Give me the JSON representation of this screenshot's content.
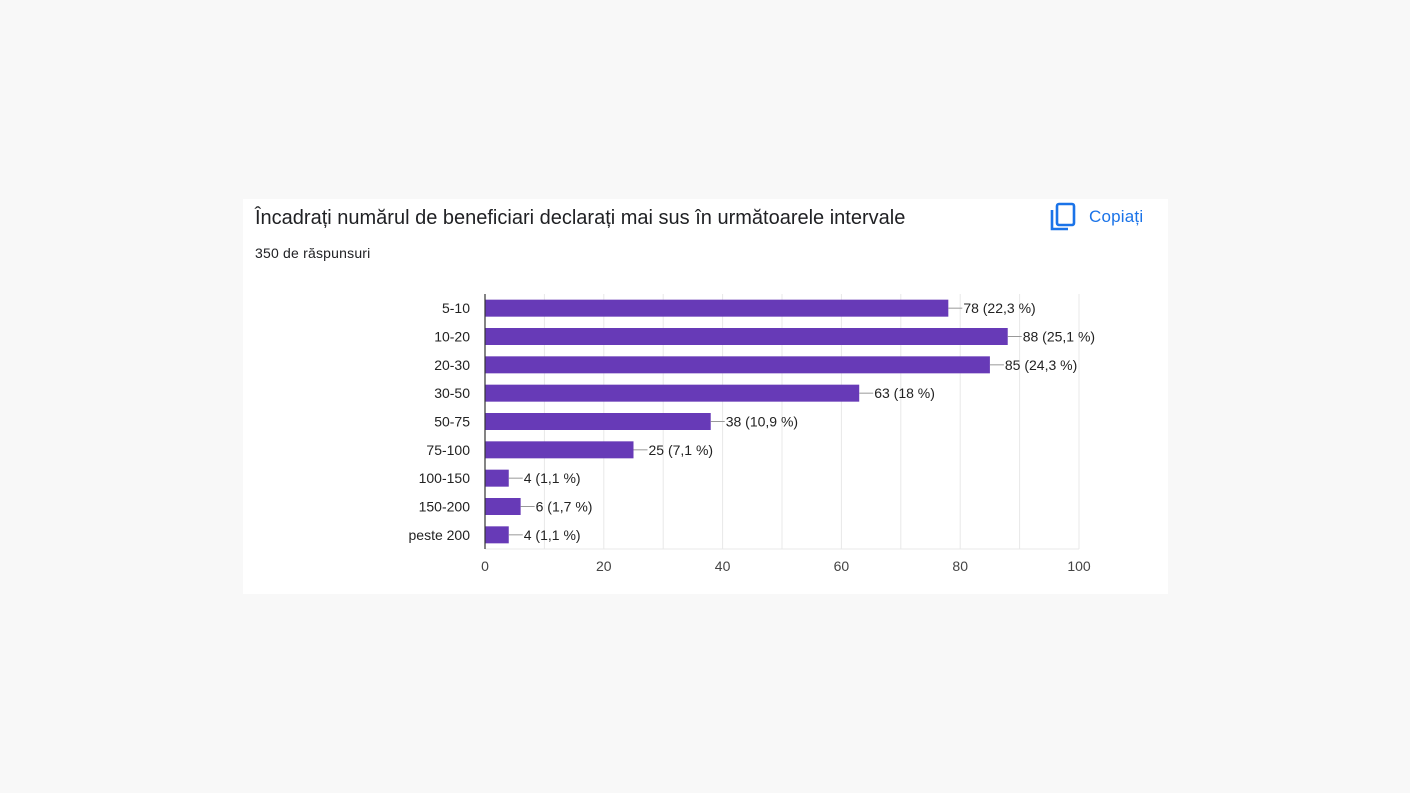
{
  "card": {
    "title": "Încadrați numărul de beneficiari declarați mai sus în următoarele intervale",
    "subtitle": "350 de răspunsuri",
    "copy_label": "Copiați",
    "copy_icon": "copy-icon"
  },
  "colors": {
    "bar": "#673ab7",
    "accent": "#1a73e8",
    "grid": "#e8e8e8",
    "axis": "#333333",
    "leader": "#999999"
  },
  "chart_data": {
    "type": "bar",
    "orientation": "horizontal",
    "title": "",
    "xlabel": "",
    "ylabel": "",
    "categories": [
      "5-10",
      "10-20",
      "20-30",
      "30-50",
      "50-75",
      "75-100",
      "100-150",
      "150-200",
      "peste 200"
    ],
    "values": [
      78,
      88,
      85,
      63,
      38,
      25,
      4,
      6,
      4
    ],
    "labels": [
      "78 (22,3 %)",
      "88 (25,1 %)",
      "85 (24,3 %)",
      "63 (18 %)",
      "38 (10,9 %)",
      "25 (7,1 %)",
      "4 (1,1 %)",
      "6 (1,7 %)",
      "4 (1,1 %)"
    ],
    "xlim": [
      0,
      100
    ],
    "xticks": [
      0,
      20,
      40,
      60,
      80,
      100
    ],
    "grid": true,
    "legend": "none"
  }
}
